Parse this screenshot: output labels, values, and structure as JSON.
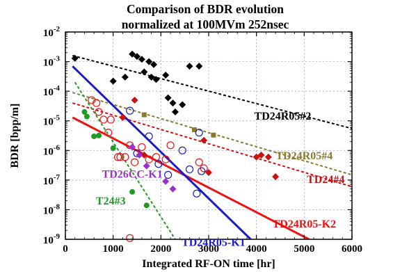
{
  "chart_data": {
    "type": "scatter",
    "title_line1": "Comparison of BDR evolution",
    "title_line2": "normalized at 100MVm 252nsec",
    "xlabel": "Integrated RF-ON time [hr]",
    "ylabel": "BDR [bpp/m]",
    "xlim": [
      0,
      6000
    ],
    "ylim": [
      1e-09,
      0.01
    ],
    "yscale": "log",
    "grid": true,
    "x_ticks": [
      0,
      1000,
      2000,
      3000,
      4000,
      5000,
      6000
    ],
    "x_tick_labels": [
      "0",
      "1000",
      "2000",
      "3000",
      "4000",
      "5000",
      "6000"
    ],
    "y_ticks": [
      {
        "value": 1e-09,
        "mant": "10",
        "exp": "-9"
      },
      {
        "value": 1e-08,
        "mant": "10",
        "exp": "-8"
      },
      {
        "value": 1e-07,
        "mant": "10",
        "exp": "-7"
      },
      {
        "value": 1e-06,
        "mant": "10",
        "exp": "-6"
      },
      {
        "value": 1e-05,
        "mant": "10",
        "exp": "-5"
      },
      {
        "value": 0.0001,
        "mant": "10",
        "exp": "-4"
      },
      {
        "value": 0.001,
        "mant": "10",
        "exp": "-3"
      },
      {
        "value": 0.01,
        "mant": "10",
        "exp": "-2"
      }
    ],
    "series": [
      {
        "name": "TD24R05#2",
        "color": "#000000",
        "marker": "diamond-filled",
        "label_pos": [
          4550,
          1.1e-05
        ],
        "fit": {
          "style": "dashed",
          "x": [
            150,
            6000
          ],
          "y": [
            0.0016,
            5.5e-06
          ]
        },
        "points": [
          [
            200,
            0.0013
          ],
          [
            1000,
            0.00022
          ],
          [
            1250,
            0.0003
          ],
          [
            1400,
            0.0018
          ],
          [
            1500,
            0.0015
          ],
          [
            1600,
            0.0012
          ],
          [
            1650,
            0.00045
          ],
          [
            1750,
            0.001
          ],
          [
            1800,
            0.0003
          ],
          [
            1850,
            0.0008
          ],
          [
            1900,
            0.00025
          ],
          [
            2100,
            0.00035
          ],
          [
            2150,
            6e-05
          ],
          [
            2250,
            4e-05
          ],
          [
            2300,
            2e-05
          ],
          [
            2450,
            3.5e-05
          ],
          [
            2600,
            0.0007
          ],
          [
            2800,
            0.0007
          ]
        ]
      },
      {
        "name": "TD24R05#4",
        "color": "#8b7a2e",
        "marker": "square-filled",
        "label_pos": [
          5000,
          5e-07
        ],
        "fit": {
          "style": "dashed",
          "x": [
            150,
            6000
          ],
          "y": [
            9e-05,
            1.5e-07
          ]
        },
        "points": [
          [
            1650,
            1.6e-05
          ],
          [
            2700,
            5e-06
          ],
          [
            3100,
            3.3e-06
          ]
        ]
      },
      {
        "name": "TD24#4",
        "color": "#cc1111",
        "marker": "diamond-filled",
        "label_pos": [
          5450,
          8e-08
        ],
        "fit": {
          "style": "dashed",
          "x": [
            150,
            6000
          ],
          "y": [
            4e-05,
            6e-08
          ]
        },
        "points": [
          [
            1200,
            1.3e-05
          ],
          [
            1450,
            5e-05
          ],
          [
            1650,
            7e-07
          ],
          [
            2900,
            2.2e-06
          ],
          [
            3000,
            1.8e-07
          ],
          [
            4000,
            6e-07
          ],
          [
            4100,
            7e-07
          ],
          [
            4250,
            6e-07
          ],
          [
            4400,
            1.3e-07
          ]
        ]
      },
      {
        "name": "TD24R05-K2",
        "color": "#ee1111",
        "marker": "circle-open",
        "label_pos": [
          5000,
          2.5e-09
        ],
        "fit": {
          "style": "solid",
          "x": [
            150,
            5100
          ],
          "y": [
            1.3e-05,
            1e-09
          ]
        },
        "points": [
          [
            550,
            5e-05
          ],
          [
            650,
            4e-05
          ],
          [
            700,
            2e-05
          ],
          [
            800,
            1.1e-05
          ],
          [
            900,
            4e-06
          ],
          [
            950,
            1.1e-05
          ],
          [
            1100,
            6e-07
          ],
          [
            1150,
            6e-07
          ],
          [
            1250,
            6e-07
          ],
          [
            1350,
            1.5e-06
          ],
          [
            1450,
            4e-07
          ],
          [
            1600,
            1.3e-06
          ],
          [
            1750,
            5e-07
          ],
          [
            1900,
            6e-07
          ],
          [
            2100,
            5e-07
          ],
          [
            2200,
            1.5e-06
          ],
          [
            2800,
            4e-07
          ],
          [
            2900,
            2.5e-07
          ],
          [
            1350,
            1.1e-09
          ]
        ]
      },
      {
        "name": "TD24R05-K1",
        "color": "#1a1ac8",
        "marker": "circle-open",
        "label_pos": [
          3100,
          6e-10
        ],
        "fit": {
          "style": "solid",
          "x": [
            150,
            3880
          ],
          "y": [
            0.0007,
            1e-09
          ]
        },
        "points": [
          [
            1350,
            2.2e-05
          ],
          [
            1500,
            8e-07
          ],
          [
            1750,
            3e-06
          ],
          [
            1950,
            3.5e-07
          ],
          [
            2150,
            1.5e-07
          ],
          [
            2450,
            1e-06
          ],
          [
            2600,
            2.3e-07
          ],
          [
            2750,
            3.5e-08
          ],
          [
            2800,
            4e-06
          ],
          [
            2850,
            2e-07
          ]
        ]
      },
      {
        "name": "TD26CC-K1",
        "color": "#9932cc",
        "marker": "diamond-filled",
        "label_pos": [
          1400,
          1.2e-07
        ],
        "fit": null,
        "points": [
          [
            1400,
            1.3e-06
          ],
          [
            1550,
            7e-07
          ],
          [
            1700,
            3e-07
          ],
          [
            2100,
            9e-08
          ],
          [
            2250,
            5e-08
          ]
        ]
      },
      {
        "name": "T24#3",
        "color": "#229922",
        "marker": "circle-filled",
        "label_pos": [
          950,
          1.5e-08
        ],
        "fit": {
          "style": "dashed",
          "x": [
            200,
            2300
          ],
          "y": [
            0.0002,
            1e-09
          ]
        },
        "points": [
          [
            400,
            2e-05
          ],
          [
            450,
            1.4e-05
          ],
          [
            600,
            3e-06
          ],
          [
            700,
            3.2e-06
          ],
          [
            1000,
            1.2e-06
          ],
          [
            1400,
            4e-08
          ],
          [
            1700,
            1.4e-08
          ]
        ]
      }
    ]
  }
}
